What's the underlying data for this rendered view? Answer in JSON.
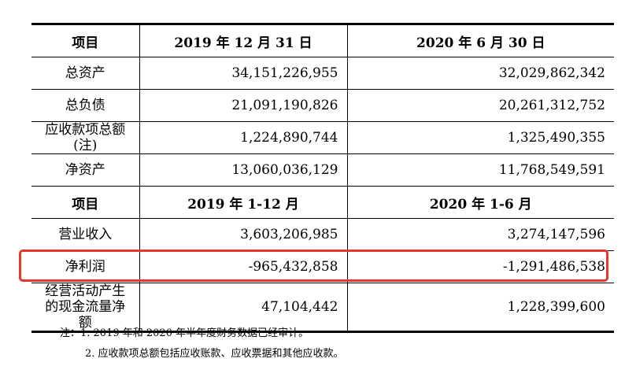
{
  "table": {
    "header1": {
      "col1": "项目",
      "col2": "2019 年 12 月 31 日",
      "col3": "2020 年 6 月 30 日"
    },
    "balance_rows": [
      {
        "label": "总资产",
        "v2019": "34,151,226,955",
        "v2020": "32,029,862,342"
      },
      {
        "label": "总负债",
        "v2019": "21,091,190,826",
        "v2020": "20,261,312,752"
      },
      {
        "label": "应收款项总额(注)",
        "v2019": "1,224,890,744",
        "v2020": "1,325,490,355"
      },
      {
        "label": "净资产",
        "v2019": "13,060,036,129",
        "v2020": "11,768,549,591"
      }
    ],
    "header2": {
      "col1": "项目",
      "col2": "2019 年 1-12 月",
      "col3": "2020 年 1-6 月"
    },
    "income_rows": [
      {
        "label": "营业收入",
        "v2019": "3,603,206,985",
        "v2020": "3,274,147,596"
      },
      {
        "label": "净利润",
        "v2019": "-965,432,858",
        "v2020": "-1,291,486,538"
      },
      {
        "label": "经营活动产生的现金流量净额",
        "v2019": "47,104,442",
        "v2020": "1,228,399,600"
      }
    ]
  },
  "highlight_color": "#e8362c",
  "notes": {
    "note1": "注：1. 2019 年和 2020 年半年度财务数据已经审计。",
    "note2": "2. 应收款项总额包括应收账款、应收票据和其他应收款。"
  }
}
